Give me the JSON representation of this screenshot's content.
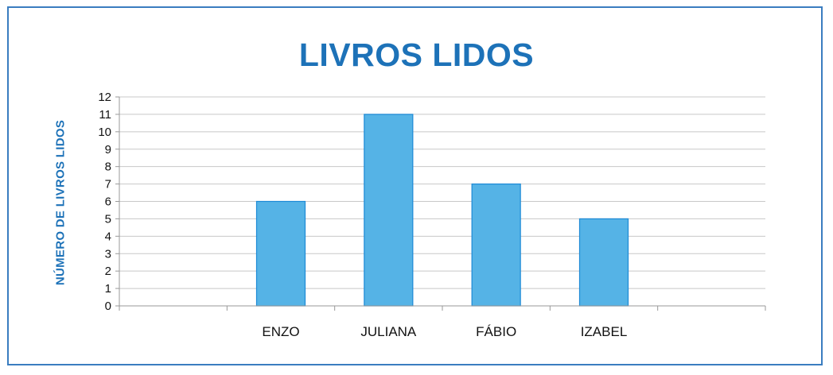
{
  "chart_data": {
    "type": "bar",
    "title": "LIVROS LIDOS",
    "xlabel": "",
    "ylabel": "NÚMERO DE LIVROS  LIDOS",
    "categories": [
      "ENZO",
      "JULIANA",
      "FÁBIO",
      "IZABEL"
    ],
    "values": [
      6,
      11,
      7,
      5
    ],
    "ylim": [
      0,
      12
    ],
    "yticks": [
      "0",
      "1",
      "2",
      "3",
      "4",
      "5",
      "6",
      "7",
      "8",
      "9",
      "10",
      "11",
      "12"
    ],
    "grid": true,
    "legend": "none",
    "bar_color": "#55b3e6",
    "bar_edge_color": "#1d8ad6",
    "accent_color": "#1d72b8"
  }
}
